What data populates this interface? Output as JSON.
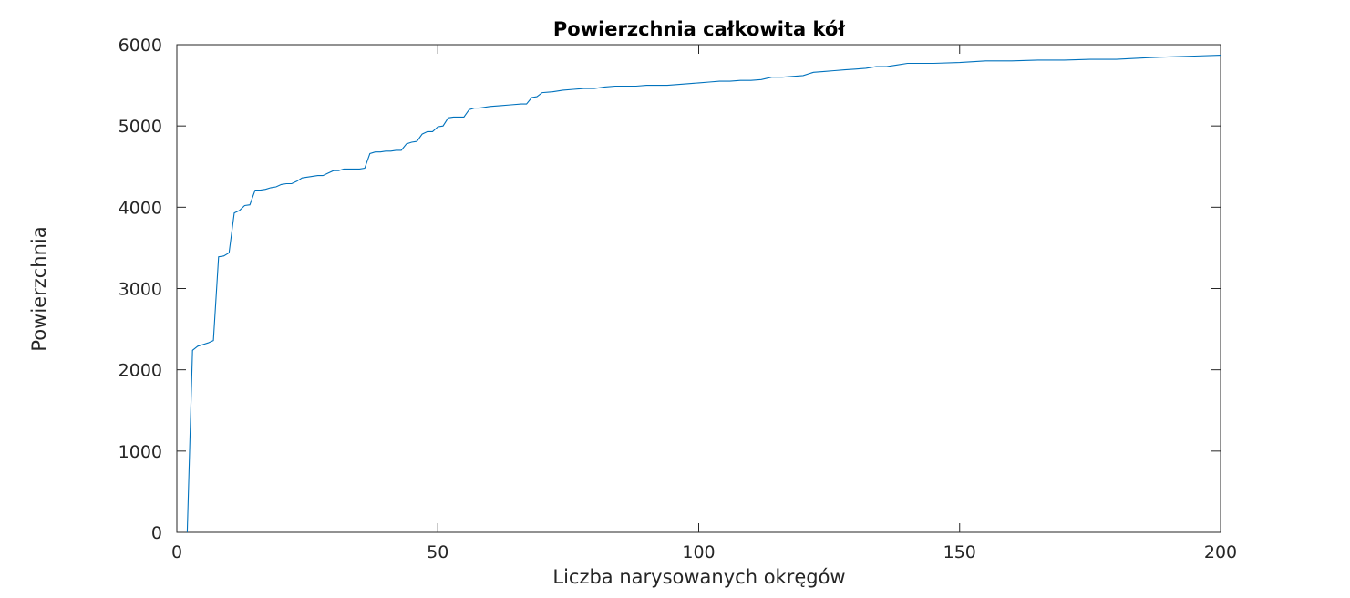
{
  "chart_data": {
    "type": "line",
    "title": "Powierzchnia całkowita kół",
    "xlabel": "Liczba narysowanych okręgów",
    "ylabel": "Powierzchnia",
    "xlim": [
      0,
      200
    ],
    "ylim": [
      0,
      6000
    ],
    "xticks": [
      0,
      50,
      100,
      150,
      200
    ],
    "xtick_labels": [
      "0",
      "50",
      "100",
      "150",
      "200"
    ],
    "yticks": [
      0,
      1000,
      2000,
      3000,
      4000,
      5000,
      6000
    ],
    "ytick_labels": [
      "0",
      "1000",
      "2000",
      "3000",
      "4000",
      "5000",
      "6000"
    ],
    "grid": false,
    "line_color": "#0072bd",
    "series": [
      {
        "x": [
          2,
          3,
          4,
          5,
          6,
          7,
          8,
          9,
          10,
          11,
          12,
          13,
          14,
          15,
          16,
          17,
          18,
          19,
          20,
          21,
          22,
          23,
          24,
          25,
          26,
          27,
          28,
          29,
          30,
          31,
          32,
          33,
          34,
          35,
          36,
          37,
          38,
          39,
          40,
          41,
          42,
          43,
          44,
          45,
          46,
          47,
          48,
          49,
          50,
          51,
          52,
          53,
          54,
          55,
          56,
          57,
          58,
          59,
          60,
          62,
          64,
          66,
          67,
          68,
          69,
          70,
          72,
          74,
          76,
          78,
          80,
          82,
          84,
          86,
          88,
          90,
          92,
          94,
          96,
          98,
          100,
          102,
          104,
          106,
          108,
          110,
          112,
          114,
          116,
          118,
          120,
          122,
          124,
          126,
          128,
          130,
          132,
          134,
          136,
          138,
          140,
          145,
          150,
          155,
          160,
          165,
          170,
          175,
          180,
          186,
          190,
          195,
          200
        ],
        "y": [
          0,
          2240,
          2290,
          2310,
          2330,
          2360,
          3390,
          3400,
          3440,
          3930,
          3960,
          4020,
          4030,
          4210,
          4210,
          4220,
          4240,
          4250,
          4280,
          4290,
          4290,
          4320,
          4360,
          4370,
          4380,
          4390,
          4390,
          4420,
          4450,
          4450,
          4470,
          4470,
          4470,
          4470,
          4480,
          4660,
          4680,
          4680,
          4690,
          4690,
          4700,
          4700,
          4780,
          4800,
          4810,
          4900,
          4930,
          4930,
          4990,
          5000,
          5100,
          5110,
          5110,
          5110,
          5200,
          5220,
          5220,
          5230,
          5240,
          5250,
          5260,
          5270,
          5270,
          5350,
          5360,
          5410,
          5420,
          5440,
          5450,
          5460,
          5460,
          5480,
          5490,
          5490,
          5490,
          5500,
          5500,
          5500,
          5510,
          5520,
          5530,
          5540,
          5550,
          5550,
          5560,
          5560,
          5570,
          5600,
          5600,
          5610,
          5620,
          5660,
          5670,
          5680,
          5690,
          5700,
          5710,
          5730,
          5730,
          5750,
          5770,
          5770,
          5780,
          5800,
          5800,
          5810,
          5810,
          5820,
          5820,
          5840,
          5850,
          5860,
          5870
        ]
      }
    ]
  }
}
